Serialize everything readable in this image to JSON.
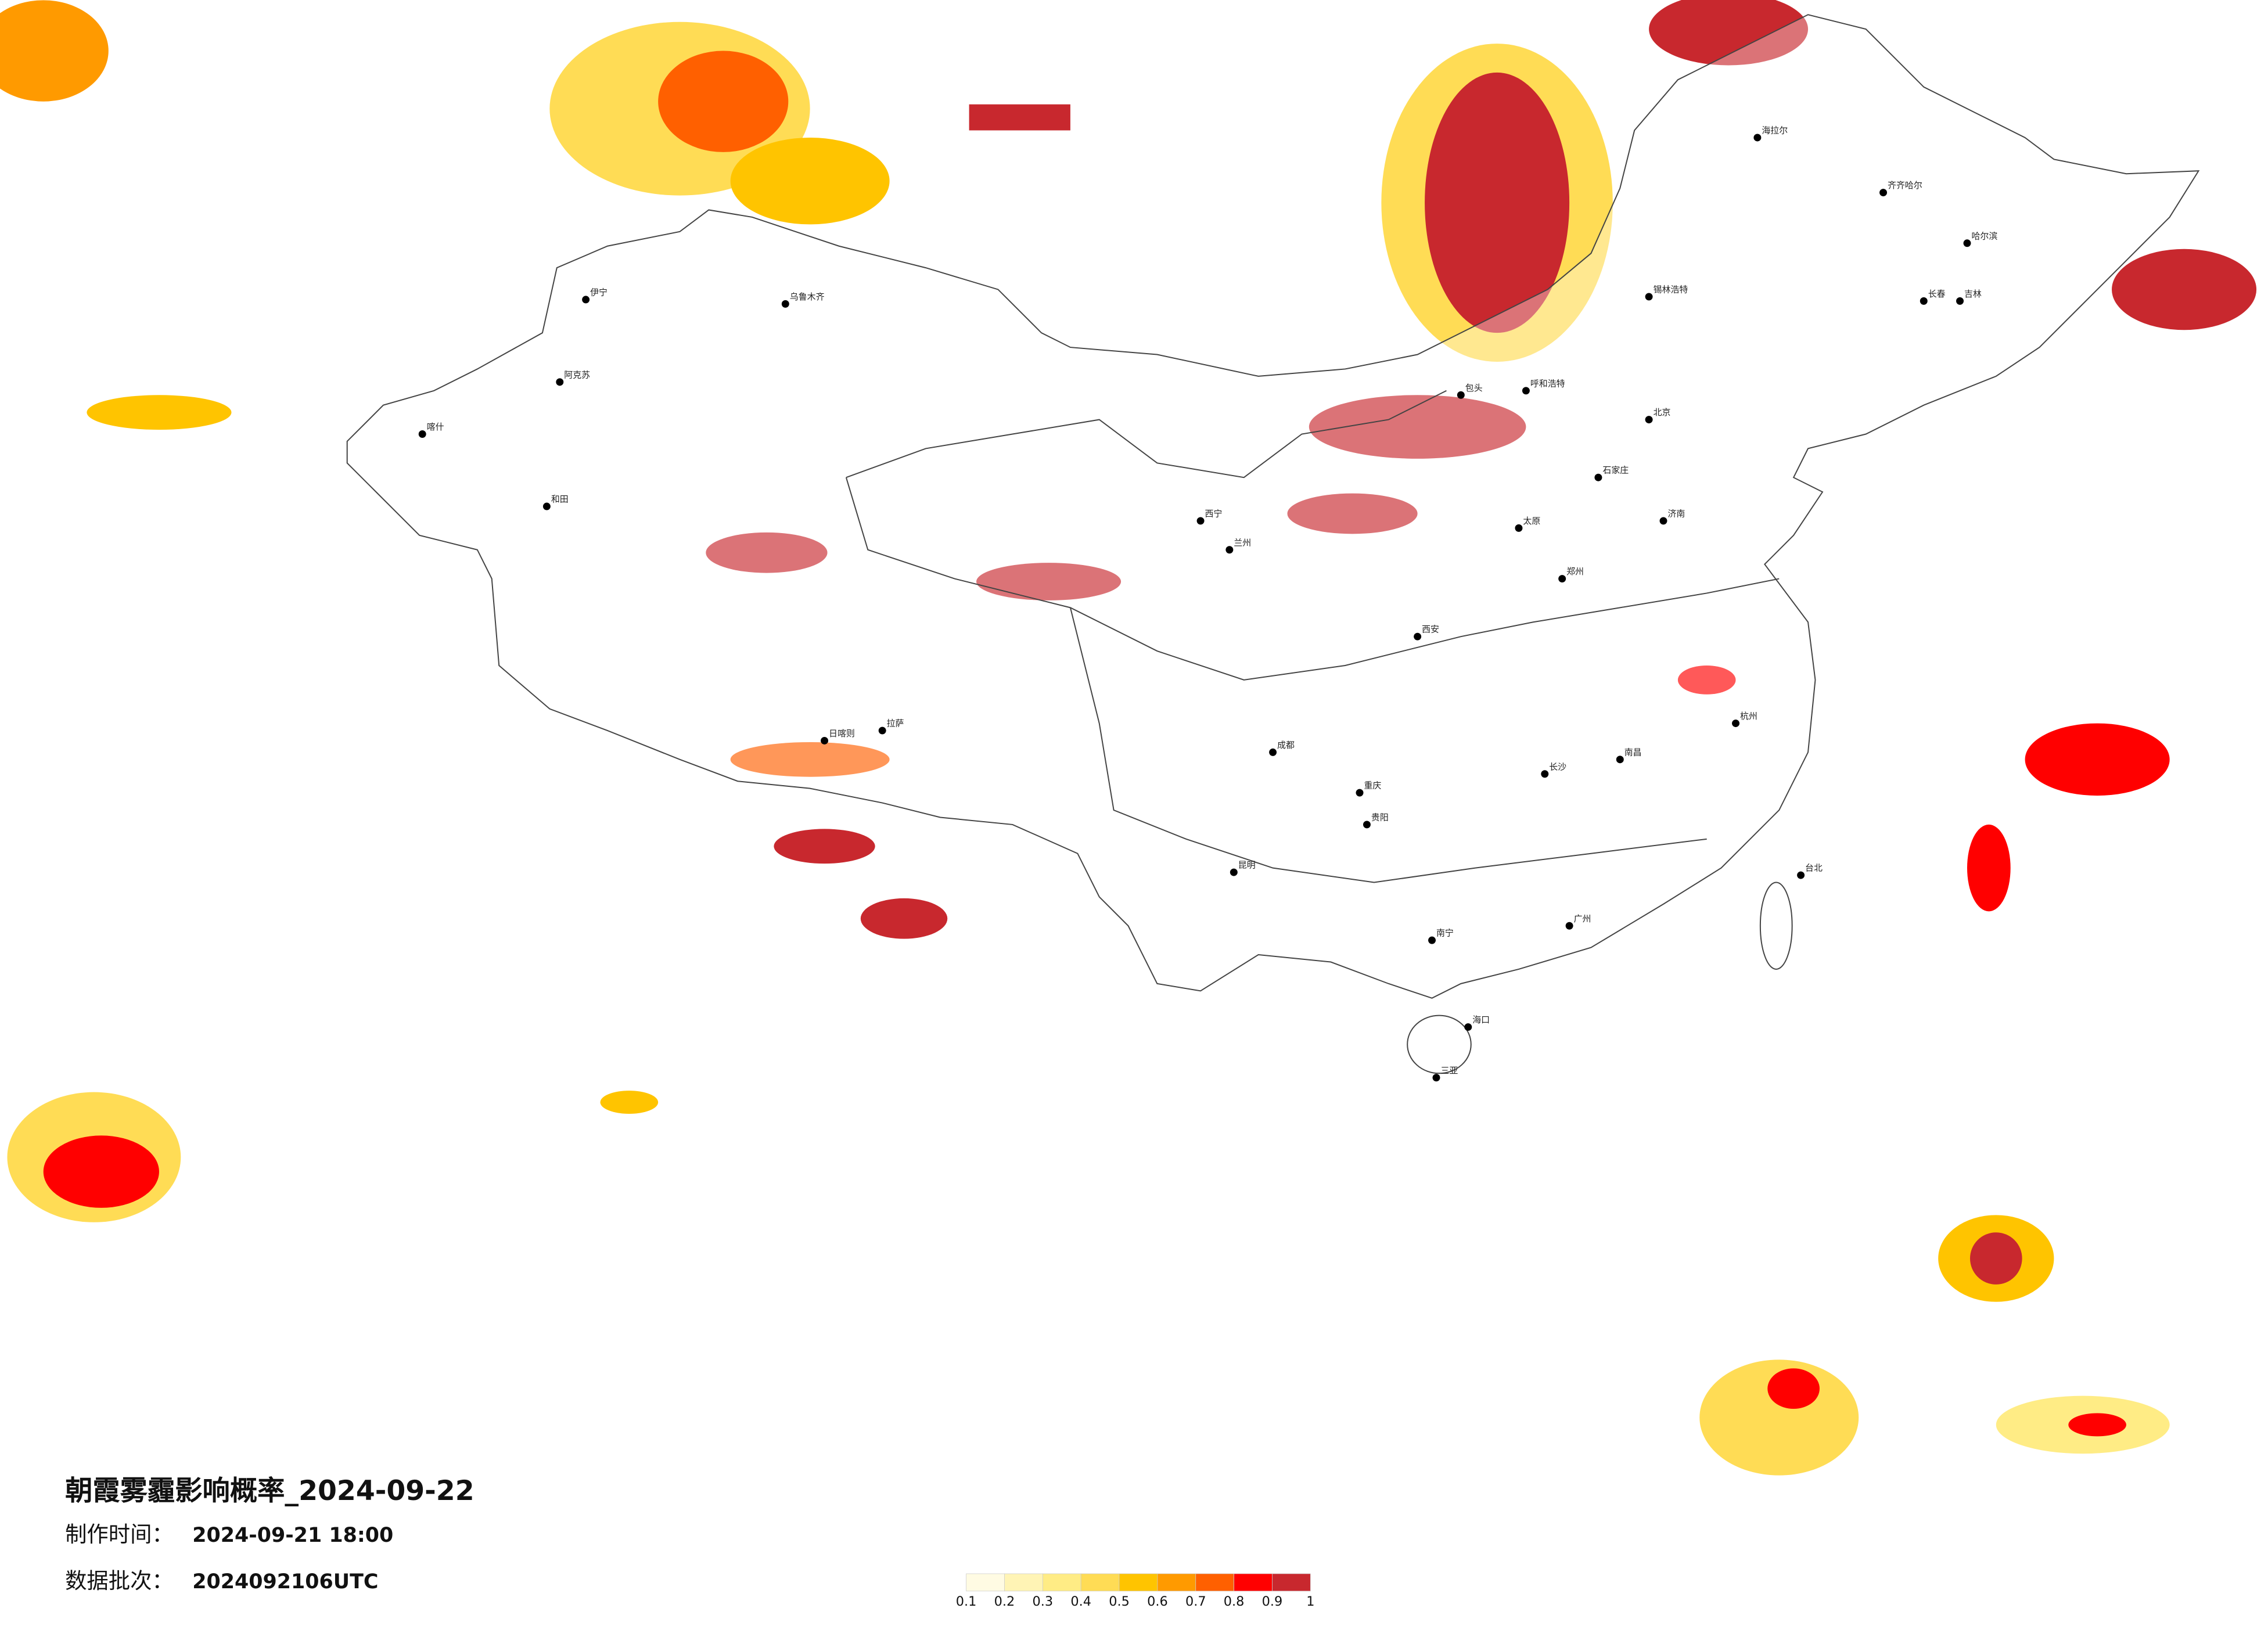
{
  "title": "朝霞雾霾影响概率_2024-09-22",
  "production_time": {
    "label": "制作时间：",
    "value": "2024-09-21 18:00"
  },
  "data_batch": {
    "label": "数据批次：",
    "value": "2024092106UTC"
  },
  "legend": {
    "colors": [
      "#fffbe3",
      "#fff4b5",
      "#ffec85",
      "#ffdc55",
      "#ffc400",
      "#ff9a00",
      "#ff6000",
      "#ff0000",
      "#c8282e"
    ],
    "ticks": [
      0.1,
      0.2,
      0.3,
      0.4,
      0.5,
      0.6,
      0.7,
      0.8,
      0.9,
      1
    ]
  },
  "cities": [
    "海拉尔",
    "齐齐哈尔",
    "哈尔滨",
    "长春",
    "吉林",
    "锡林浩特",
    "呼和浩特",
    "包头",
    "北京",
    "石家庄",
    "太原",
    "郑州",
    "济南",
    "西安",
    "兰州",
    "西宁",
    "拉萨",
    "日喀则",
    "和田",
    "阿克苏",
    "乌鲁木齐",
    "伊宁",
    "喀什",
    "成都",
    "重庆",
    "贵阳",
    "昆明",
    "南宁",
    "长沙",
    "南昌",
    "杭州",
    "广州",
    "台北",
    "海口",
    "三亚"
  ]
}
